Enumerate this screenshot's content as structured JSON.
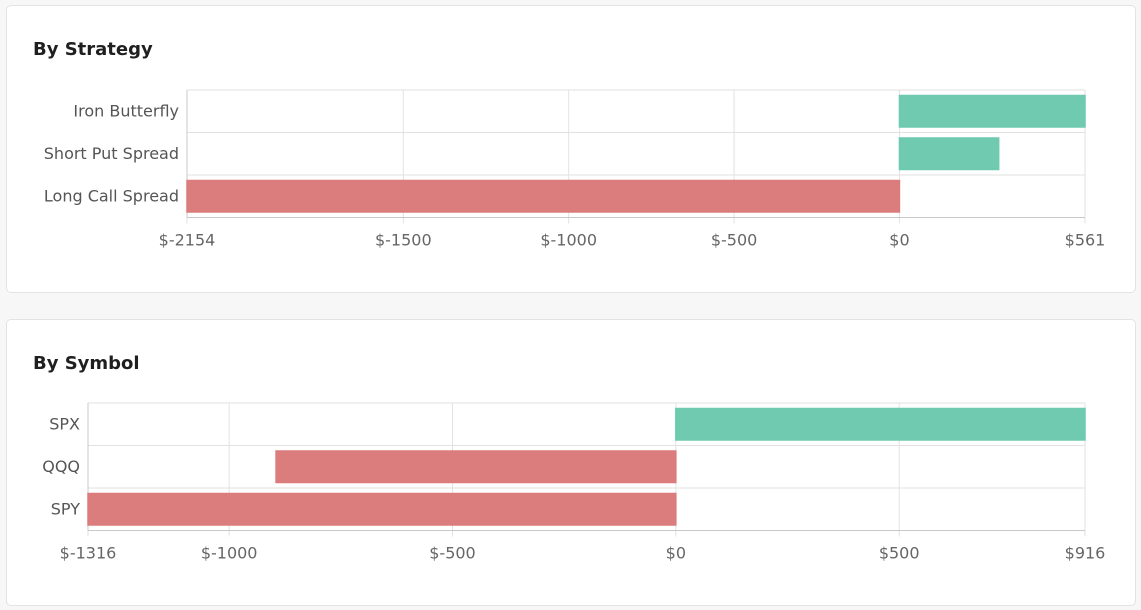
{
  "colors": {
    "positive": "#6fcaaf",
    "negative": "#db7d7d",
    "grid": "#e2e2e2",
    "axis": "#c8c8c8"
  },
  "chart_data": [
    {
      "type": "bar",
      "orientation": "horizontal",
      "title": "By Strategy",
      "categories": [
        "Iron Butterfly",
        "Short Put Spread",
        "Long Call Spread"
      ],
      "values": [
        561,
        300,
        -2154
      ],
      "xlim": [
        -2154,
        561
      ],
      "ticks": [
        -2154,
        -1500,
        -1000,
        -500,
        0,
        561
      ],
      "tick_labels": [
        "$-2154",
        "$-1500",
        "$-1000",
        "$-500",
        "$0",
        "$561"
      ],
      "grid": true
    },
    {
      "type": "bar",
      "orientation": "horizontal",
      "title": "By Symbol",
      "categories": [
        "SPX",
        "QQQ",
        "SPY"
      ],
      "values": [
        916,
        -895,
        -1316
      ],
      "xlim": [
        -1316,
        916
      ],
      "ticks": [
        -1316,
        -1000,
        -500,
        0,
        500,
        916
      ],
      "tick_labels": [
        "$-1316",
        "$-1000",
        "$-500",
        "$0",
        "$500",
        "$916"
      ],
      "grid": true
    }
  ]
}
